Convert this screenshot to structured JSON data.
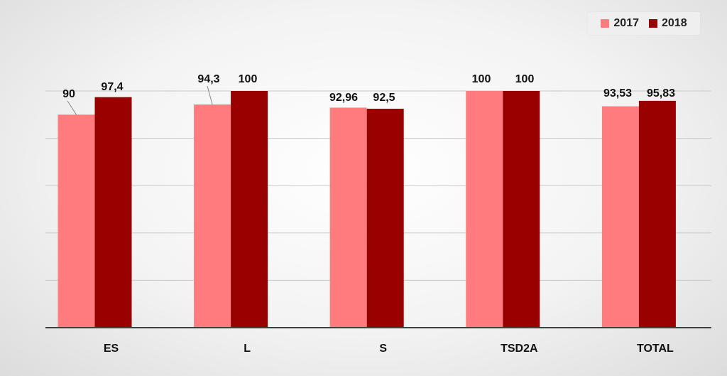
{
  "colors": {
    "series_2017": "#ff7b7e",
    "series_2018": "#990000",
    "gridline": "#c8c8c8",
    "axis": "#404040",
    "label_text": "#111111"
  },
  "legend": {
    "items": [
      {
        "label": "2017"
      },
      {
        "label": "2018"
      }
    ]
  },
  "chart_data": {
    "type": "bar",
    "categories": [
      "ES",
      "L",
      "S",
      "TSD2A",
      "TOTAL"
    ],
    "series": [
      {
        "name": "2017",
        "values": [
          90,
          94.3,
          92.96,
          100,
          93.53
        ],
        "labels": [
          "90",
          "94,3",
          "92,96",
          "100",
          "93,53"
        ]
      },
      {
        "name": "2018",
        "values": [
          97.4,
          100,
          92.5,
          100,
          95.83
        ],
        "labels": [
          "97,4",
          "100",
          "92,5",
          "100",
          "95,83"
        ]
      }
    ],
    "ylim": [
      0,
      100
    ],
    "gridlines": [
      20,
      40,
      60,
      80,
      100
    ],
    "grid": true,
    "legend_position": "top-right",
    "title": "",
    "xlabel": "",
    "ylabel": ""
  }
}
